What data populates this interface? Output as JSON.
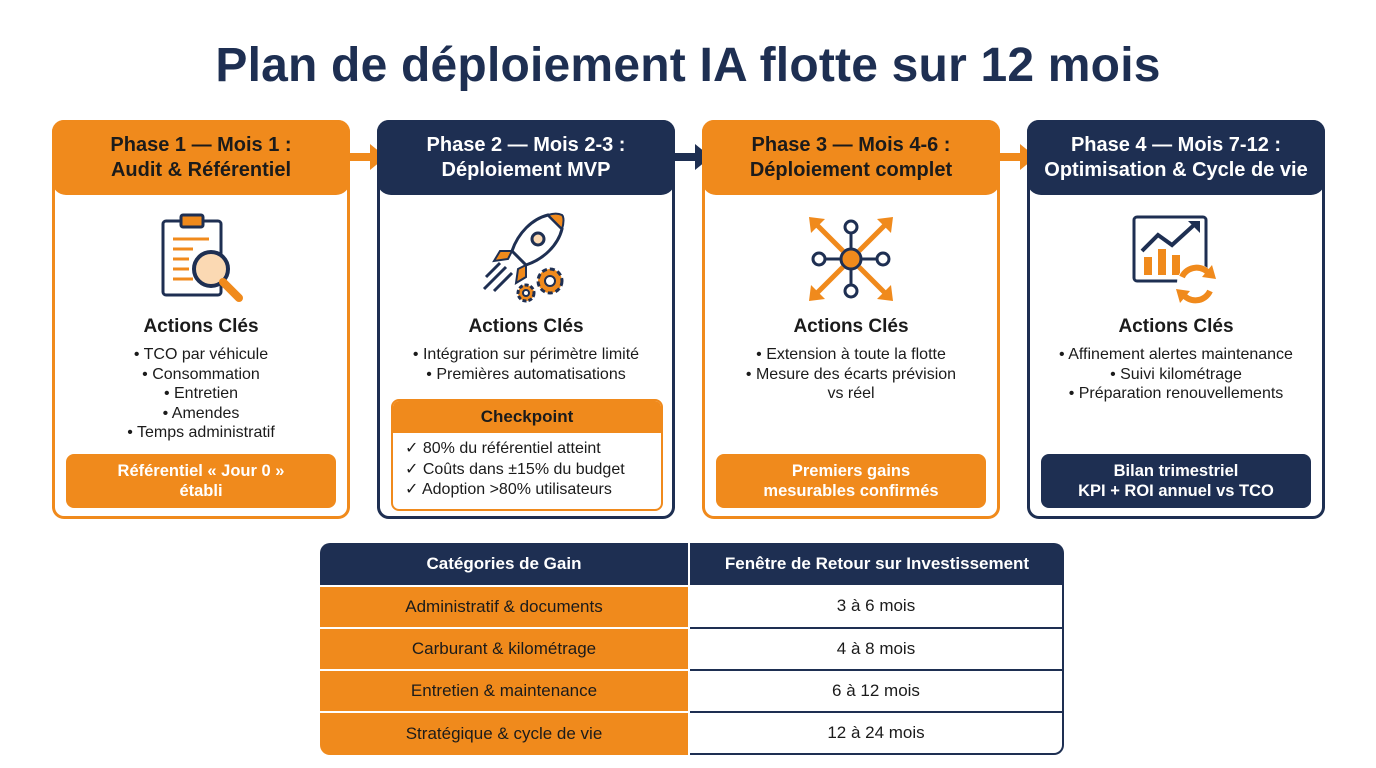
{
  "title": "Plan de déploiement IA flotte sur 12 mois",
  "colors": {
    "orange": "#f08a1c",
    "navy": "#1e2f52"
  },
  "phases": [
    {
      "title_line1": "Phase 1 — Mois 1 :",
      "title_line2": "Audit & Référentiel",
      "icon": "clipboard-magnifier-icon",
      "actions_title": "Actions Clés",
      "actions": [
        "• TCO par véhicule",
        "• Consommation",
        "• Entretien",
        "• Amendes",
        "• Temps administratif"
      ],
      "result_line1": "Référentiel « Jour 0 »",
      "result_line2": "établi"
    },
    {
      "title_line1": "Phase 2 — Mois 2-3 :",
      "title_line2": "Déploiement MVP",
      "icon": "rocket-gears-icon",
      "actions_title": "Actions Clés",
      "actions": [
        "• Intégration sur périmètre limité",
        "• Premières automatisations"
      ],
      "checkpoint_title": "Checkpoint",
      "checkpoint_items": [
        "✓ 80% du référentiel atteint",
        "✓ Coûts dans ±15% du budget",
        "✓ Adoption >80% utilisateurs"
      ]
    },
    {
      "title_line1": "Phase 3 — Mois 4-6 :",
      "title_line2": "Déploiement complet",
      "icon": "network-expand-icon",
      "actions_title": "Actions Clés",
      "actions": [
        "• Extension à toute la flotte",
        "• Mesure des écarts prévision",
        "vs réel"
      ],
      "result_line1": "Premiers gains",
      "result_line2": "mesurables confirmés"
    },
    {
      "title_line1": "Phase 4 — Mois 7-12 :",
      "title_line2": "Optimisation & Cycle de vie",
      "icon": "chart-cycle-icon",
      "actions_title": "Actions Clés",
      "actions": [
        "• Affinement alertes maintenance",
        "• Suivi kilométrage",
        "• Préparation renouvellements"
      ],
      "result_line1": "Bilan trimestriel",
      "result_line2": "KPI + ROI annuel vs TCO"
    }
  ],
  "table": {
    "header_category": "Catégories de Gain",
    "header_window": "Fenêtre de Retour sur Investissement",
    "rows": [
      {
        "category": "Administratif & documents",
        "window": "3 à 6 mois"
      },
      {
        "category": "Carburant & kilométrage",
        "window": "4 à 8 mois"
      },
      {
        "category": "Entretien & maintenance",
        "window": "6 à 12 mois"
      },
      {
        "category": "Stratégique & cycle de vie",
        "window": "12 à 24 mois"
      }
    ]
  }
}
